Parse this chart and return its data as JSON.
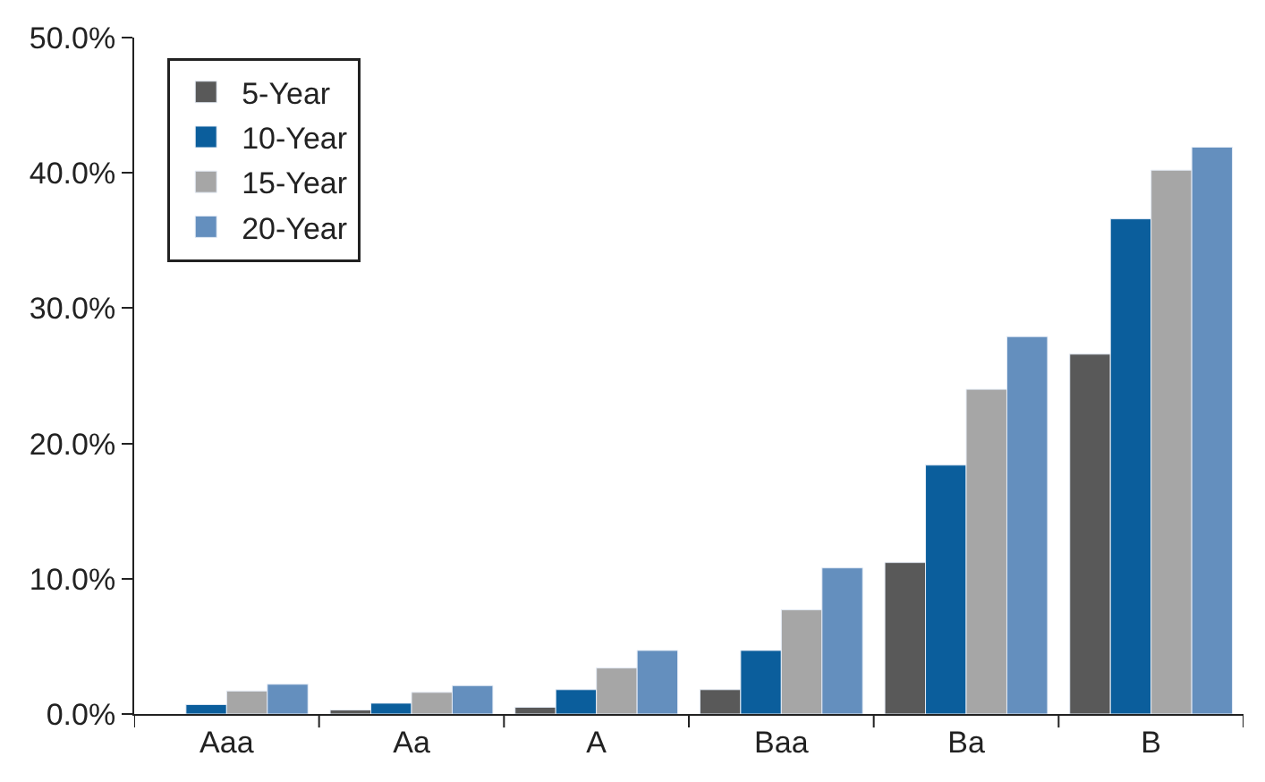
{
  "chart_data": {
    "type": "bar",
    "categories": [
      "Aaa",
      "Aa",
      "A",
      "Baa",
      "Ba",
      "B"
    ],
    "series": [
      {
        "name": "5-Year",
        "color": "#595959",
        "values": [
          null,
          0.3,
          0.5,
          1.8,
          11.2,
          26.6
        ]
      },
      {
        "name": "10-Year",
        "color": "#0b5e9c",
        "values": [
          0.7,
          0.8,
          1.8,
          4.7,
          18.4,
          36.6
        ]
      },
      {
        "name": "15-Year",
        "color": "#a6a6a6",
        "values": [
          1.7,
          1.6,
          3.4,
          7.7,
          24.0,
          40.2
        ]
      },
      {
        "name": "20-Year",
        "color": "#648fbe",
        "values": [
          2.2,
          2.1,
          4.7,
          10.8,
          27.9,
          41.9
        ]
      }
    ],
    "ylim": [
      0,
      50
    ],
    "yticks": [
      {
        "value": 0,
        "label": "0.0%"
      },
      {
        "value": 10,
        "label": "10.0%"
      },
      {
        "value": 20,
        "label": "20.0%"
      },
      {
        "value": 30,
        "label": "30.0%"
      },
      {
        "value": 40,
        "label": "40.0%"
      },
      {
        "value": 50,
        "label": "50.0%"
      }
    ],
    "legend": "top left"
  }
}
